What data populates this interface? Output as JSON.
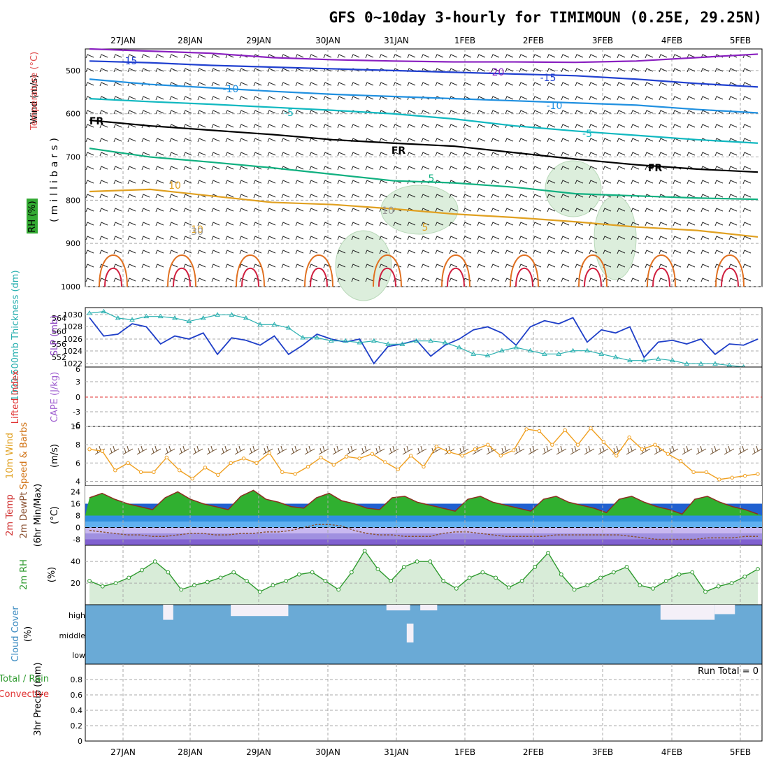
{
  "title": "GFS 0~10day 3-hourly for TIMIMOUN (0.25E, 29.25N)",
  "dates": [
    "27JAN",
    "28JAN",
    "29JAN",
    "30JAN",
    "31JAN",
    "1FEB",
    "2FEB",
    "3FEB",
    "4FEB",
    "5FEB"
  ],
  "colors": {
    "grid": "#aaaaaa",
    "frame": "#000000",
    "cloud": "#6aaad6",
    "rh_fill": "#d8ecd8",
    "slp": "#1f3fc8",
    "thick": "#2ab0b0",
    "wind": "#f0a020",
    "rh_line": "#2e9a2e"
  },
  "chart_data": [
    {
      "type": "contour",
      "panel": "upper-air",
      "ylabel_lines": [
        "Wind (m/s)",
        "Temperature (°C)",
        "RH (%)"
      ],
      "ylabel_units": "(millibars)",
      "yticks": [
        "500",
        "600",
        "700",
        "800",
        "900",
        "1000"
      ],
      "ylim": [
        450,
        1000
      ],
      "contour_labels": [
        "-15",
        "-10",
        "-5",
        "-20",
        "-15",
        "-10",
        "-5",
        "FR",
        "FR",
        "FR",
        "5",
        "5",
        "10",
        "10",
        "10",
        "30",
        "10"
      ],
      "isotherms": [
        {
          "label": "-20",
          "color": "#8a20c0",
          "p": [
            450,
            455,
            460,
            470,
            475,
            478,
            480,
            480,
            481,
            478,
            470,
            462
          ]
        },
        {
          "label": "-15",
          "color": "#2040d0",
          "p": [
            478,
            482,
            488,
            492,
            496,
            500,
            504,
            508,
            512,
            520,
            530,
            538
          ]
        },
        {
          "label": "-10",
          "color": "#2090e0",
          "p": [
            520,
            532,
            540,
            548,
            555,
            560,
            565,
            570,
            575,
            580,
            590,
            598
          ]
        },
        {
          "label": "-5",
          "color": "#10b8c0",
          "p": [
            565,
            572,
            578,
            585,
            592,
            600,
            612,
            628,
            640,
            650,
            660,
            668
          ]
        },
        {
          "label": "FR",
          "color": "#000000",
          "p": [
            615,
            628,
            638,
            648,
            660,
            668,
            675,
            690,
            705,
            718,
            728,
            735
          ]
        },
        {
          "label": "5",
          "color": "#10b080",
          "p": [
            680,
            700,
            712,
            725,
            740,
            755,
            760,
            770,
            785,
            790,
            795,
            798
          ]
        },
        {
          "label": "10",
          "color": "#e0a020",
          "p": [
            780,
            775,
            790,
            805,
            810,
            820,
            832,
            840,
            850,
            862,
            870,
            885
          ]
        }
      ]
    },
    {
      "type": "line",
      "panel": "slp-thickness",
      "ylabel_left": "1000-500mb Thickness (dm)",
      "ylabel_right": "SLP (mb)",
      "yticks_left": [
        "564",
        "560",
        "556",
        "552"
      ],
      "yticks_right": [
        "1030",
        "1028",
        "1026",
        "1024",
        "1022"
      ],
      "series": [
        {
          "name": "SLP (mb)",
          "values": [
            1029.5,
            1026.5,
            1026.8,
            1028.5,
            1028.0,
            1025.2,
            1026.5,
            1026.0,
            1027.0,
            1023.5,
            1026.2,
            1025.8,
            1025.0,
            1026.5,
            1023.5,
            1025.0,
            1026.8,
            1026.0,
            1025.5,
            1026.0,
            1022.0,
            1024.8,
            1025.2,
            1025.8,
            1023.2,
            1025.0,
            1026.0,
            1027.5,
            1028.0,
            1027.0,
            1025.0,
            1028.0,
            1029.0,
            1028.5,
            1029.5,
            1025.5,
            1027.5,
            1027.0,
            1028.0,
            1023.0,
            1025.5,
            1025.8,
            1025.2,
            1026.0,
            1023.5,
            1025.2,
            1025.0,
            1026.0
          ]
        },
        {
          "name": "Thickness (dm)",
          "values": [
            565.5,
            566,
            564,
            563.5,
            564.5,
            564.5,
            564,
            563,
            564,
            565,
            565,
            564,
            562,
            562,
            561,
            558,
            558,
            557,
            557,
            556.5,
            557,
            556,
            556,
            557,
            557,
            556.5,
            555,
            553,
            552.5,
            554,
            555,
            554,
            553,
            553,
            554,
            554,
            553,
            552,
            551,
            551,
            551.5,
            551,
            550,
            550,
            550,
            549.5,
            549,
            548
          ]
        }
      ]
    },
    {
      "type": "line",
      "panel": "lifted-index-cape",
      "ylabel_left": "Lifted Index",
      "ylabel_right": "CAPE (J/kg)",
      "yticks": [
        "6",
        "3",
        "0",
        "-3",
        "-6"
      ],
      "series": [
        {
          "name": "Lifted Index",
          "values": []
        }
      ]
    },
    {
      "type": "line",
      "panel": "10m-wind",
      "ylabel_lines": [
        "10m Wind",
        "Speed & Barbs",
        "(m/s)"
      ],
      "yticks": [
        "10",
        "8",
        "6",
        "4"
      ],
      "ylim": [
        3.5,
        10
      ],
      "series": [
        {
          "name": "10m Wind Speed",
          "values": [
            7.5,
            7.3,
            5.2,
            6.0,
            5.0,
            5.0,
            6.6,
            5.2,
            4.3,
            5.5,
            4.7,
            6.0,
            6.5,
            6.0,
            7.1,
            5.0,
            4.8,
            5.6,
            6.6,
            5.8,
            6.7,
            6.5,
            7.0,
            6.1,
            5.3,
            6.8,
            5.6,
            7.8,
            7.2,
            6.8,
            7.5,
            8.0,
            6.8,
            7.4,
            9.7,
            9.5,
            8.0,
            9.6,
            8.0,
            9.8,
            8.3,
            6.8,
            8.8,
            7.5,
            8.0,
            7.0,
            6.2,
            5.0,
            5.0,
            4.2,
            4.4,
            4.6,
            4.8
          ]
        }
      ]
    },
    {
      "type": "area",
      "panel": "2m-temp",
      "ylabel_lines": [
        "2m Temp",
        "2m DewPt",
        "(6hr Min/Max)",
        "(°C)"
      ],
      "yticks": [
        "24",
        "16",
        "8",
        "0",
        "-8"
      ],
      "ylim": [
        -12,
        28
      ],
      "series": [
        {
          "name": "2m Temp",
          "values": [
            20,
            23,
            19,
            16,
            14,
            12,
            20,
            24,
            19,
            16,
            14,
            12,
            21,
            25,
            19,
            17,
            14,
            13,
            20,
            23,
            18,
            16,
            13,
            12,
            20,
            21,
            17,
            15,
            13,
            11,
            19,
            21,
            17,
            15,
            13,
            11,
            19,
            21,
            17,
            15,
            13,
            10,
            19,
            21,
            17,
            14,
            12,
            9,
            19,
            21,
            17,
            14,
            12,
            9
          ]
        },
        {
          "name": "2m DewPt",
          "values": [
            -2,
            -3,
            -4,
            -5,
            -5,
            -6,
            -6,
            -5,
            -4,
            -4,
            -5,
            -5,
            -4,
            -4,
            -3,
            -3,
            -2,
            0,
            2,
            2,
            1,
            -2,
            -4,
            -5,
            -5,
            -6,
            -6,
            -6,
            -4,
            -3,
            -3,
            -4,
            -5,
            -6,
            -6,
            -6,
            -6,
            -5,
            -5,
            -5,
            -5,
            -5,
            -5,
            -6,
            -7,
            -8,
            -8,
            -8,
            -8,
            -7,
            -7,
            -7,
            -6,
            -6
          ]
        }
      ]
    },
    {
      "type": "area",
      "panel": "2m-rh",
      "ylabel_lines": [
        "2m RH",
        "(%)"
      ],
      "yticks": [
        "40",
        "20"
      ],
      "ylim": [
        0,
        55
      ],
      "series": [
        {
          "name": "2m RH",
          "values": [
            22,
            17,
            20,
            25,
            32,
            40,
            30,
            14,
            18,
            21,
            25,
            30,
            22,
            12,
            18,
            22,
            28,
            30,
            22,
            14,
            30,
            50,
            33,
            22,
            35,
            40,
            40,
            22,
            15,
            25,
            30,
            25,
            16,
            22,
            35,
            48,
            28,
            14,
            18,
            25,
            30,
            35,
            18,
            15,
            22,
            28,
            30,
            12,
            17,
            20,
            26,
            33
          ]
        }
      ]
    },
    {
      "type": "heatmap",
      "panel": "cloud-cover",
      "ylabel_lines": [
        "Cloud Cover",
        "(%)"
      ],
      "levels": [
        "high",
        "middle",
        "low"
      ],
      "clear_spans": [
        {
          "level": "high",
          "from": 11.5,
          "to": 13,
          "amount": 80
        },
        {
          "level": "high",
          "from": 21.5,
          "to": 30,
          "amount": 60
        },
        {
          "level": "high",
          "from": 44.5,
          "to": 48,
          "amount": 30
        },
        {
          "level": "high",
          "from": 49.5,
          "to": 52,
          "amount": 30
        },
        {
          "level": "high",
          "from": 85,
          "to": 93,
          "amount": 80
        },
        {
          "level": "high",
          "from": 93,
          "to": 96,
          "amount": 50
        },
        {
          "level": "middle",
          "from": 47.5,
          "to": 48.5,
          "amount": 90
        }
      ]
    },
    {
      "type": "bar",
      "panel": "precip",
      "ylabel_lines": [
        "3hr Precip (mm)",
        "Total / Rain",
        "Convective"
      ],
      "yticks": [
        "0.8",
        "0.6",
        "0.4",
        "0.2",
        "0"
      ],
      "ylim": [
        0,
        1.0
      ],
      "run_total": "Run Total = 0",
      "series": [
        {
          "name": "3hr Precip",
          "values": []
        }
      ]
    }
  ]
}
